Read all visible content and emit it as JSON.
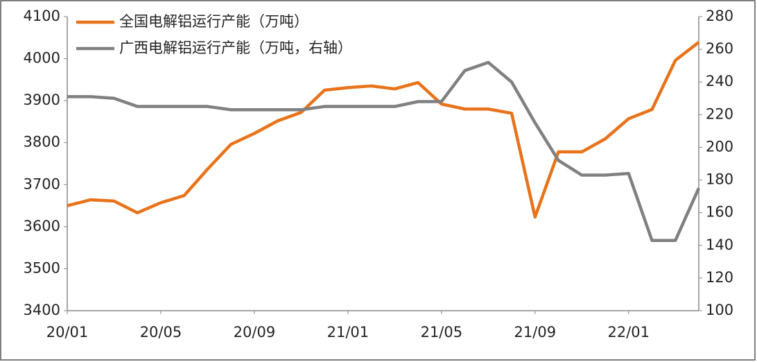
{
  "chart_data": {
    "type": "line",
    "categories": [
      "20/01",
      null,
      null,
      null,
      "20/05",
      null,
      null,
      null,
      "20/09",
      null,
      null,
      null,
      "21/01",
      null,
      null,
      null,
      "21/05",
      null,
      null,
      null,
      "21/09",
      null,
      null,
      null,
      "22/01",
      null,
      null,
      null
    ],
    "series": [
      {
        "name": "全国电解铝运行产能（万吨）",
        "color": "#e8731a",
        "values": [
          3650,
          3664,
          3661,
          3633,
          3657,
          3674,
          3737,
          3796,
          3822,
          3852,
          3872,
          3925,
          3931,
          3935,
          3928,
          3943,
          3892,
          3880,
          3880,
          3870,
          3623,
          3778,
          3778,
          3809,
          3857,
          3879,
          3996,
          4039
        ]
      },
      {
        "name": "广西电解铝运行产能（万吨，右轴）",
        "color": "#808080",
        "axis": "y2",
        "values": [
          231,
          231,
          230,
          225,
          225,
          225,
          225,
          223,
          223,
          223,
          223,
          225,
          225,
          225,
          225,
          228,
          228,
          247,
          252,
          240,
          215,
          192,
          183,
          183,
          184,
          143,
          143,
          175
        ]
      }
    ],
    "ylim": [
      3400,
      4100
    ],
    "yticks": [
      3400,
      3500,
      3600,
      3700,
      3800,
      3900,
      4000,
      4100
    ],
    "y2lim": [
      100,
      280
    ],
    "y2ticks": [
      100,
      120,
      140,
      160,
      180,
      200,
      220,
      240,
      260,
      280
    ],
    "legend": "upper left"
  }
}
